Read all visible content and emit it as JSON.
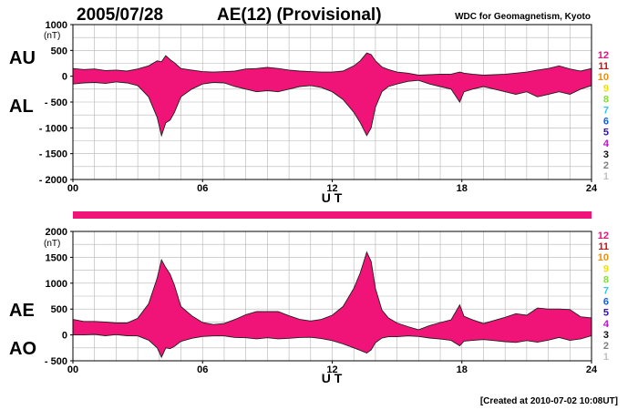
{
  "header": {
    "date": "2005/07/28",
    "title": "AE(12) (Provisional)",
    "source": "WDC for Geomagnetism, Kyoto"
  },
  "footer": {
    "created": "[Created at 2010-07-02 10:08UT]"
  },
  "station_legend": {
    "labels": [
      "12",
      "11",
      "10",
      "9",
      "8",
      "7",
      "6",
      "5",
      "4",
      "3",
      "2",
      "1"
    ],
    "colors": [
      "#e8127c",
      "#d01010",
      "#f09000",
      "#f0e000",
      "#80e030",
      "#30c8e8",
      "#1060e0",
      "#3010b0",
      "#c010d0",
      "#101010",
      "#808080",
      "#c0c0c0"
    ]
  },
  "bar_color": "#f01478",
  "chart_data": [
    {
      "type": "area",
      "id": "au-al",
      "unit_label": "(nT)",
      "xlabel": "U T",
      "ylim": [
        -2000,
        1000
      ],
      "yticks": [
        1000,
        500,
        0,
        -500,
        -1000,
        -1500,
        -2000
      ],
      "ytick_labels": [
        "1000",
        "500",
        "0",
        "- 500",
        "- 1000",
        "- 1500",
        "- 2000"
      ],
      "xlim": [
        0,
        24
      ],
      "xticks": [
        0,
        6,
        12,
        18,
        24
      ],
      "xtick_labels": [
        "00",
        "06",
        "12",
        "18",
        "24"
      ],
      "grid": true,
      "upper_series_label": "AU",
      "lower_series_label": "AL",
      "fill_color": "#f01478",
      "x": [
        0,
        0.5,
        1,
        1.5,
        2,
        2.5,
        3,
        3.5,
        3.9,
        4.1,
        4.3,
        4.5,
        4.7,
        5,
        5.5,
        6,
        6.5,
        7,
        7.5,
        8,
        8.5,
        9,
        9.5,
        10,
        10.5,
        11,
        11.5,
        12,
        12.5,
        13,
        13.3,
        13.6,
        13.8,
        14,
        14.3,
        14.6,
        15,
        15.5,
        16,
        16.5,
        17,
        17.5,
        17.9,
        18.1,
        18.5,
        19,
        19.5,
        20,
        20.5,
        21,
        21.5,
        22,
        22.5,
        23,
        23.5,
        24
      ],
      "upper": [
        150,
        130,
        140,
        110,
        120,
        100,
        140,
        200,
        300,
        280,
        400,
        320,
        260,
        150,
        120,
        90,
        80,
        90,
        100,
        140,
        150,
        170,
        150,
        120,
        100,
        90,
        80,
        80,
        100,
        200,
        300,
        450,
        420,
        300,
        180,
        130,
        80,
        60,
        20,
        30,
        40,
        40,
        80,
        60,
        40,
        20,
        30,
        40,
        60,
        80,
        120,
        150,
        200,
        140,
        100,
        150
      ],
      "lower": [
        -150,
        -130,
        -120,
        -140,
        -110,
        -130,
        -180,
        -400,
        -800,
        -1150,
        -900,
        -850,
        -700,
        -400,
        -250,
        -150,
        -120,
        -130,
        -200,
        -250,
        -300,
        -280,
        -300,
        -250,
        -200,
        -180,
        -220,
        -300,
        -450,
        -700,
        -900,
        -1150,
        -1000,
        -600,
        -300,
        -200,
        -150,
        -100,
        -80,
        -150,
        -200,
        -250,
        -500,
        -300,
        -250,
        -200,
        -250,
        -300,
        -350,
        -300,
        -400,
        -350,
        -300,
        -350,
        -250,
        -180
      ]
    },
    {
      "type": "area",
      "id": "ae-ao",
      "unit_label": "(nT)",
      "xlabel": "U T",
      "ylim": [
        -500,
        2000
      ],
      "yticks": [
        2000,
        1500,
        1000,
        500,
        0,
        -500
      ],
      "ytick_labels": [
        "2000",
        "1500",
        "1000",
        "500",
        "0",
        "- 500"
      ],
      "xlim": [
        0,
        24
      ],
      "xticks": [
        0,
        6,
        12,
        18,
        24
      ],
      "xtick_labels": [
        "00",
        "06",
        "12",
        "18",
        "24"
      ],
      "grid": true,
      "upper_series_label": "AE",
      "lower_series_label": "AO",
      "fill_color": "#f01478",
      "x": [
        0,
        0.5,
        1,
        1.5,
        2,
        2.5,
        3,
        3.5,
        3.9,
        4.1,
        4.3,
        4.5,
        4.7,
        5,
        5.5,
        6,
        6.5,
        7,
        7.5,
        8,
        8.5,
        9,
        9.5,
        10,
        10.5,
        11,
        11.5,
        12,
        12.5,
        13,
        13.3,
        13.6,
        13.8,
        14,
        14.3,
        14.6,
        15,
        15.5,
        16,
        16.5,
        17,
        17.5,
        17.9,
        18.1,
        18.5,
        19,
        19.5,
        20,
        20.5,
        21,
        21.5,
        22,
        22.5,
        23,
        23.5,
        24
      ],
      "upper": [
        300,
        260,
        260,
        250,
        230,
        230,
        320,
        600,
        1100,
        1450,
        1300,
        1170,
        960,
        550,
        370,
        240,
        200,
        220,
        300,
        390,
        450,
        450,
        450,
        370,
        300,
        270,
        300,
        380,
        550,
        900,
        1200,
        1600,
        1420,
        900,
        480,
        330,
        230,
        160,
        100,
        180,
        240,
        290,
        580,
        360,
        290,
        220,
        280,
        340,
        410,
        380,
        520,
        500,
        500,
        490,
        350,
        330
      ],
      "lower": [
        0,
        0,
        10,
        -15,
        5,
        -15,
        -20,
        -100,
        -250,
        -430,
        -250,
        -265,
        -220,
        -125,
        -65,
        -30,
        -20,
        -20,
        -50,
        -55,
        -75,
        -55,
        -75,
        -65,
        -50,
        -45,
        -70,
        -110,
        -175,
        -250,
        -300,
        -350,
        -290,
        -150,
        -60,
        -35,
        -35,
        -20,
        -30,
        -60,
        -80,
        -105,
        -210,
        -120,
        -105,
        -90,
        -110,
        -130,
        -145,
        -110,
        -140,
        -100,
        -50,
        -105,
        -75,
        -15
      ]
    }
  ]
}
